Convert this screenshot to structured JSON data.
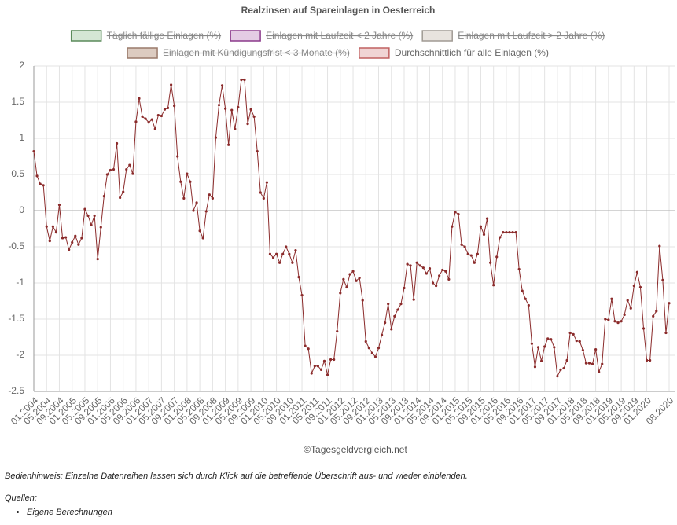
{
  "chart_data": {
    "type": "line",
    "title": "Realzinsen auf Spareinlagen in Oesterreich",
    "categories": [
      "01.2004",
      null,
      null,
      null,
      "05.2004",
      null,
      null,
      null,
      "09.2004",
      null,
      null,
      null,
      "01.2005",
      null,
      null,
      null,
      "05.2005",
      null,
      null,
      null,
      "09.2005",
      null,
      null,
      null,
      "01.2006",
      null,
      null,
      null,
      "05.2006",
      null,
      null,
      null,
      "09.2006",
      null,
      null,
      null,
      "01.2007",
      null,
      null,
      null,
      "05.2007",
      null,
      null,
      null,
      "09.2007",
      null,
      null,
      null,
      "01.2008",
      null,
      null,
      null,
      "05.2008",
      null,
      null,
      null,
      "09.2008",
      null,
      null,
      null,
      "01.2009",
      null,
      null,
      null,
      "05.2009",
      null,
      null,
      null,
      "09.2009",
      null,
      null,
      null,
      "01.2010",
      null,
      null,
      null,
      "05.2010",
      null,
      null,
      null,
      "09.2010",
      null,
      null,
      null,
      "01.2011",
      null,
      null,
      null,
      "05.2011",
      null,
      null,
      null,
      "09.2011",
      null,
      null,
      null,
      "01.2012",
      null,
      null,
      null,
      "05.2012",
      null,
      null,
      null,
      "09.2012",
      null,
      null,
      null,
      "01.2013",
      null,
      null,
      null,
      "05.2013",
      null,
      null,
      null,
      "09.2013",
      null,
      null,
      null,
      "01.2014",
      null,
      null,
      null,
      "05.2014",
      null,
      null,
      null,
      "09.2014",
      null,
      null,
      null,
      "01.2015",
      null,
      null,
      null,
      "05.2015",
      null,
      null,
      null,
      "09.2015",
      null,
      null,
      null,
      "01.2016",
      null,
      null,
      null,
      "05.2016",
      null,
      null,
      null,
      "09.2016",
      null,
      null,
      null,
      "01.2017",
      null,
      null,
      null,
      "05.2017",
      null,
      null,
      null,
      "09.2017",
      null,
      null,
      null,
      "01.2018",
      null,
      null,
      null,
      "05.2018",
      null,
      null,
      null,
      "09.2018",
      null,
      null,
      null,
      "01.2019",
      null,
      null,
      null,
      "05.2019",
      null,
      null,
      null,
      "09.2019",
      null,
      null,
      null,
      "01.2020",
      null,
      null,
      null,
      null,
      null,
      null,
      "08.2020"
    ],
    "series": [
      {
        "name": "Täglich fällige Einlagen (%)",
        "color": "#d4e6d4",
        "border": "#5a8a5a",
        "hidden": true
      },
      {
        "name": "Einlagen mit Laufzeit < 2 Jahre (%)",
        "color": "#e4cce4",
        "border": "#8b3a8b",
        "hidden": true
      },
      {
        "name": "Einlagen mit Laufzeit > 2 Jahre (%)",
        "color": "#e8e3de",
        "border": "#a09a94",
        "hidden": true
      },
      {
        "name": "Einlagen mit Kündigungsfrist < 3 Monate (%)",
        "color": "#dccbc0",
        "border": "#9a7a6a",
        "hidden": true
      },
      {
        "name": "Durchschnittlich für alle Einlagen (%)",
        "color": "#8b2b2b",
        "fill": "#f0d4d4",
        "border": "#c06060",
        "hidden": false,
        "values": [
          0.82,
          0.48,
          0.37,
          0.35,
          -0.22,
          -0.42,
          -0.22,
          -0.3,
          0.08,
          -0.38,
          -0.37,
          -0.54,
          -0.44,
          -0.35,
          -0.47,
          -0.38,
          0.02,
          -0.07,
          -0.2,
          -0.07,
          -0.67,
          -0.23,
          0.2,
          0.5,
          0.56,
          0.57,
          0.93,
          0.18,
          0.26,
          0.57,
          0.63,
          0.51,
          1.23,
          1.55,
          1.3,
          1.27,
          1.22,
          1.26,
          1.13,
          1.32,
          1.31,
          1.4,
          1.42,
          1.74,
          1.45,
          0.75,
          0.4,
          0.17,
          0.51,
          0.4,
          0.0,
          0.11,
          -0.28,
          -0.38,
          -0.01,
          0.22,
          0.17,
          1.01,
          1.46,
          1.73,
          1.41,
          0.91,
          1.39,
          1.13,
          1.43,
          1.81,
          1.81,
          1.2,
          1.4,
          1.3,
          0.82,
          0.25,
          0.17,
          0.39,
          -0.6,
          -0.65,
          -0.6,
          -0.72,
          -0.6,
          -0.5,
          -0.6,
          -0.72,
          -0.55,
          -0.92,
          -1.17,
          -1.87,
          -1.91,
          -2.25,
          -2.15,
          -2.15,
          -2.2,
          -2.08,
          -2.27,
          -2.06,
          -2.06,
          -1.67,
          -1.14,
          -0.95,
          -1.06,
          -0.88,
          -0.84,
          -0.97,
          -0.93,
          -1.24,
          -1.81,
          -1.9,
          -1.97,
          -2.02,
          -1.9,
          -1.72,
          -1.55,
          -1.29,
          -1.64,
          -1.46,
          -1.37,
          -1.29,
          -1.07,
          -0.74,
          -0.76,
          -1.23,
          -0.72,
          -0.76,
          -0.79,
          -0.87,
          -0.8,
          -1.0,
          -1.04,
          -0.9,
          -0.82,
          -0.84,
          -0.95,
          -0.22,
          -0.02,
          -0.05,
          -0.47,
          -0.5,
          -0.6,
          -0.62,
          -0.72,
          -0.6,
          -0.22,
          -0.33,
          -0.11,
          -0.72,
          -1.03,
          -0.64,
          -0.37,
          -0.3,
          -0.3,
          -0.3,
          -0.3,
          -0.3,
          -0.81,
          -1.11,
          -1.22,
          -1.31,
          -1.84,
          -2.16,
          -1.89,
          -2.08,
          -1.88,
          -1.77,
          -1.78,
          -1.89,
          -2.29,
          -2.2,
          -2.18,
          -2.07,
          -1.69,
          -1.71,
          -1.8,
          -1.81,
          -1.93,
          -2.11,
          -2.11,
          -2.12,
          -1.92,
          -2.23,
          -2.12,
          -1.5,
          -1.51,
          -1.22,
          -1.53,
          -1.55,
          -1.53,
          -1.44,
          -1.24,
          -1.35,
          -1.04,
          -0.85,
          -1.06,
          -1.63,
          -2.07,
          -2.07,
          -1.46,
          -1.39,
          -0.49,
          -0.96,
          -1.69,
          -1.28
        ]
      }
    ],
    "ylim": [
      -2.5,
      2
    ],
    "yticks": [
      -2.5,
      -2,
      -1.5,
      -1,
      -0.5,
      0,
      0.5,
      1,
      1.5,
      2
    ],
    "grid": true,
    "source": "©Tagesgeldvergleich.net"
  },
  "notes": {
    "hint": "Bedienhinweis: Einzelne Datenreihen lassen sich durch Klick auf die betreffende Überschrift aus- und wieder einblenden.",
    "sources_heading": "Quellen:",
    "sources": [
      "Eigene Berechnungen"
    ]
  }
}
